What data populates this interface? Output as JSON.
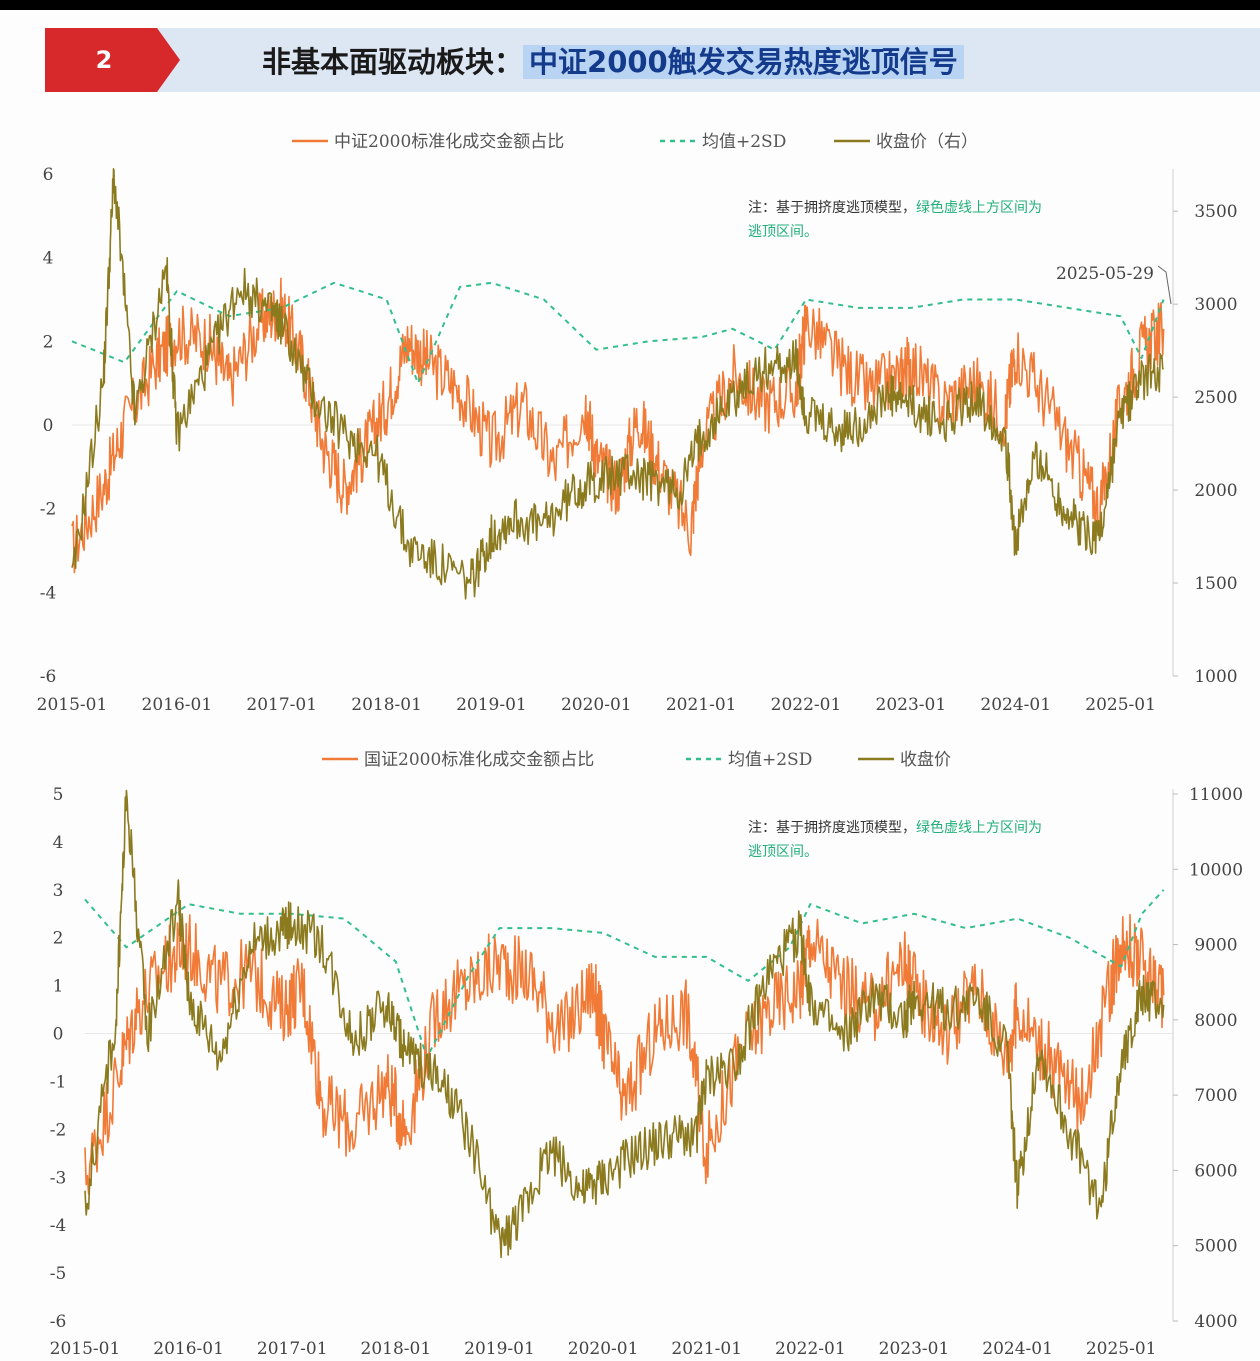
{
  "header": {
    "badge_number": "2",
    "title_prefix": "非基本面驱动板块：",
    "title_highlight": "中证2000触发交易热度逃顶信号",
    "badge_color": "#d7282b",
    "banner_color": "#dde7f3",
    "highlight_color": "#b9d4f2"
  },
  "colors": {
    "ratio": "#f07a36",
    "band": "#33bf8b",
    "price": "#8c7a1e"
  },
  "chart_data": [
    {
      "type": "line",
      "legend": [
        {
          "label": "中证2000标准化成交金额占比",
          "style": "solid",
          "color": "#f07a36"
        },
        {
          "label": "均值+2SD",
          "style": "dashed",
          "color": "#33bf8b"
        },
        {
          "label": "收盘价（右）",
          "style": "solid",
          "color": "#8c7a1e"
        }
      ],
      "legend_placement": "top",
      "note_prefix": "注：基于拥挤度逃顶模型，",
      "note_green_1": "绿色虚线上方区间为",
      "note_green_2": "逃顶区间。",
      "annotation": "2025-05-29",
      "x_ticks": [
        "2015-01",
        "2016-01",
        "2017-01",
        "2018-01",
        "2019-01",
        "2020-01",
        "2021-01",
        "2022-01",
        "2023-01",
        "2024-01",
        "2025-01"
      ],
      "x_range": [
        2015.0,
        2025.5
      ],
      "y_left_range": [
        -6,
        6
      ],
      "y_left_ticks": [
        "6",
        "4",
        "2",
        "0",
        "-2",
        "-4",
        "-6"
      ],
      "y_right_range": [
        1000,
        3700
      ],
      "y_right_ticks": [
        "3500",
        "3000",
        "2500",
        "2000",
        "1500",
        "1000"
      ],
      "grid": false,
      "series": [
        {
          "name": "中证2000标准化成交金额占比",
          "axis": "left",
          "x": [
            2015.0,
            2015.3,
            2015.5,
            2015.8,
            2016.0,
            2016.3,
            2016.5,
            2016.8,
            2017.0,
            2017.2,
            2017.4,
            2017.6,
            2017.8,
            2018.0,
            2018.2,
            2018.4,
            2018.7,
            2019.0,
            2019.3,
            2019.6,
            2019.9,
            2020.0,
            2020.2,
            2020.4,
            2020.6,
            2020.9,
            2021.0,
            2021.3,
            2021.6,
            2021.9,
            2022.0,
            2022.3,
            2022.6,
            2022.9,
            2023.0,
            2023.3,
            2023.6,
            2023.9,
            2024.0,
            2024.3,
            2024.6,
            2024.8,
            2025.0,
            2025.2,
            2025.41
          ],
          "values": [
            -3.0,
            -1.5,
            0.0,
            1.5,
            2.2,
            2.0,
            1.0,
            2.5,
            2.8,
            1.5,
            -0.5,
            -1.5,
            -0.5,
            0.5,
            2.0,
            1.5,
            0.8,
            -0.5,
            0.5,
            -1.0,
            0.5,
            -0.8,
            -1.5,
            0.2,
            -1.0,
            -2.5,
            -0.5,
            1.2,
            0.5,
            0.8,
            2.5,
            1.5,
            0.8,
            1.2,
            1.5,
            0.5,
            1.0,
            0.2,
            1.8,
            0.5,
            -1.0,
            -2.0,
            0.5,
            1.8,
            2.3
          ]
        },
        {
          "name": "均值+2SD",
          "axis": "left",
          "x": [
            2015.0,
            2015.5,
            2016.0,
            2016.5,
            2017.0,
            2017.5,
            2018.0,
            2018.3,
            2018.7,
            2019.0,
            2019.5,
            2020.0,
            2020.5,
            2021.0,
            2021.3,
            2021.7,
            2022.0,
            2022.5,
            2023.0,
            2023.5,
            2024.0,
            2024.5,
            2025.0,
            2025.2,
            2025.41
          ],
          "values": [
            2.0,
            1.5,
            3.2,
            2.6,
            2.8,
            3.4,
            3.0,
            1.0,
            3.3,
            3.4,
            3.0,
            1.8,
            2.0,
            2.1,
            2.3,
            1.8,
            3.0,
            2.8,
            2.8,
            3.0,
            3.0,
            2.8,
            2.6,
            1.6,
            3.0
          ]
        },
        {
          "name": "收盘价（右）",
          "axis": "right",
          "x": [
            2015.0,
            2015.3,
            2015.4,
            2015.6,
            2015.9,
            2016.0,
            2016.3,
            2016.6,
            2016.9,
            2017.0,
            2017.3,
            2017.6,
            2017.9,
            2018.2,
            2018.5,
            2018.8,
            2019.0,
            2019.2,
            2019.5,
            2019.8,
            2020.0,
            2020.3,
            2020.5,
            2020.8,
            2021.0,
            2021.3,
            2021.6,
            2021.9,
            2022.0,
            2022.3,
            2022.5,
            2022.8,
            2023.0,
            2023.3,
            2023.6,
            2023.9,
            2024.0,
            2024.2,
            2024.4,
            2024.6,
            2024.8,
            2025.0,
            2025.2,
            2025.41
          ],
          "values": [
            1500,
            2600,
            3700,
            2400,
            3200,
            2300,
            2700,
            3100,
            2950,
            2900,
            2500,
            2300,
            2200,
            1700,
            1600,
            1500,
            1750,
            1850,
            1800,
            2000,
            2050,
            2100,
            2050,
            2000,
            2300,
            2500,
            2650,
            2700,
            2400,
            2300,
            2350,
            2500,
            2450,
            2350,
            2500,
            2300,
            1700,
            2200,
            1950,
            1800,
            1750,
            2400,
            2600,
            2650
          ]
        }
      ]
    },
    {
      "type": "line",
      "legend": [
        {
          "label": "国证2000标准化成交金额占比",
          "style": "solid",
          "color": "#f07a36"
        },
        {
          "label": "均值+2SD",
          "style": "dashed",
          "color": "#33bf8b"
        },
        {
          "label": "收盘价",
          "style": "solid",
          "color": "#8c7a1e"
        }
      ],
      "legend_placement": "top",
      "note_prefix": "注：基于拥挤度逃顶模型，",
      "note_green_1": "绿色虚线上方区间为",
      "note_green_2": "逃顶区间。",
      "x_ticks": [
        "2015-01",
        "2016-01",
        "2017-01",
        "2018-01",
        "2019-01",
        "2020-01",
        "2021-01",
        "2022-01",
        "2023-01",
        "2024-01",
        "2025-01"
      ],
      "x_range": [
        2015.0,
        2025.5
      ],
      "y_left_range": [
        -6,
        5
      ],
      "y_left_ticks": [
        "5",
        "4",
        "3",
        "2",
        "1",
        "0",
        "-1",
        "-2",
        "-3",
        "-4",
        "-5",
        "-6"
      ],
      "y_right_range": [
        4000,
        11000
      ],
      "y_right_ticks": [
        "11000",
        "10000",
        "9000",
        "8000",
        "7000",
        "6000",
        "5000",
        "4000"
      ],
      "grid": false,
      "series": [
        {
          "name": "国证2000标准化成交金额占比",
          "axis": "left",
          "x": [
            2015.0,
            2015.3,
            2015.5,
            2015.8,
            2016.0,
            2016.3,
            2016.6,
            2016.9,
            2017.1,
            2017.3,
            2017.6,
            2017.9,
            2018.1,
            2018.4,
            2018.7,
            2019.0,
            2019.3,
            2019.6,
            2019.9,
            2020.0,
            2020.2,
            2020.5,
            2020.8,
            2021.0,
            2021.3,
            2021.6,
            2021.9,
            2022.0,
            2022.3,
            2022.6,
            2022.9,
            2023.0,
            2023.3,
            2023.6,
            2023.9,
            2024.0,
            2024.3,
            2024.6,
            2024.9,
            2025.0,
            2025.2,
            2025.41
          ],
          "values": [
            -3.0,
            -1.0,
            0.5,
            1.5,
            1.8,
            1.0,
            1.3,
            0.5,
            1.0,
            -1.5,
            -2.0,
            -1.0,
            -2.0,
            0.5,
            1.0,
            1.5,
            1.2,
            0.0,
            1.0,
            0.0,
            -1.5,
            0.0,
            0.5,
            -2.5,
            -0.5,
            0.5,
            1.0,
            2.0,
            1.0,
            0.5,
            1.5,
            1.0,
            0.0,
            1.0,
            -0.5,
            0.5,
            -0.5,
            -1.5,
            1.0,
            2.0,
            1.5,
            0.8
          ]
        },
        {
          "name": "均值+2SD",
          "axis": "left",
          "x": [
            2015.0,
            2015.4,
            2016.0,
            2016.5,
            2017.0,
            2017.5,
            2018.0,
            2018.3,
            2018.7,
            2019.0,
            2019.5,
            2020.0,
            2020.5,
            2021.0,
            2021.4,
            2021.8,
            2022.0,
            2022.5,
            2023.0,
            2023.5,
            2024.0,
            2024.5,
            2025.0,
            2025.2,
            2025.41
          ],
          "values": [
            2.8,
            1.8,
            2.7,
            2.5,
            2.5,
            2.4,
            1.5,
            -0.5,
            1.2,
            2.2,
            2.2,
            2.1,
            1.6,
            1.6,
            1.1,
            1.8,
            2.7,
            2.3,
            2.5,
            2.2,
            2.4,
            2.0,
            1.4,
            2.5,
            3.0
          ]
        },
        {
          "name": "收盘价",
          "axis": "right",
          "x": [
            2015.0,
            2015.3,
            2015.4,
            2015.6,
            2015.9,
            2016.0,
            2016.3,
            2016.6,
            2016.9,
            2017.0,
            2017.3,
            2017.6,
            2017.9,
            2018.1,
            2018.4,
            2018.7,
            2019.0,
            2019.2,
            2019.5,
            2019.8,
            2020.0,
            2020.3,
            2020.6,
            2020.9,
            2021.0,
            2021.3,
            2021.6,
            2021.9,
            2022.0,
            2022.3,
            2022.6,
            2022.9,
            2023.0,
            2023.3,
            2023.6,
            2023.9,
            2024.0,
            2024.2,
            2024.5,
            2024.8,
            2025.0,
            2025.2,
            2025.41
          ],
          "values": [
            5500,
            8000,
            11000,
            7800,
            9600,
            8300,
            7500,
            9000,
            9200,
            9300,
            9000,
            7700,
            8200,
            7600,
            7200,
            6500,
            5000,
            5400,
            6300,
            5700,
            5900,
            6200,
            6400,
            6500,
            7200,
            7500,
            8600,
            9200,
            8300,
            7700,
            8300,
            8000,
            8300,
            8100,
            8300,
            7600,
            5700,
            7600,
            6500,
            5500,
            7500,
            8300,
            8200
          ]
        }
      ]
    }
  ]
}
